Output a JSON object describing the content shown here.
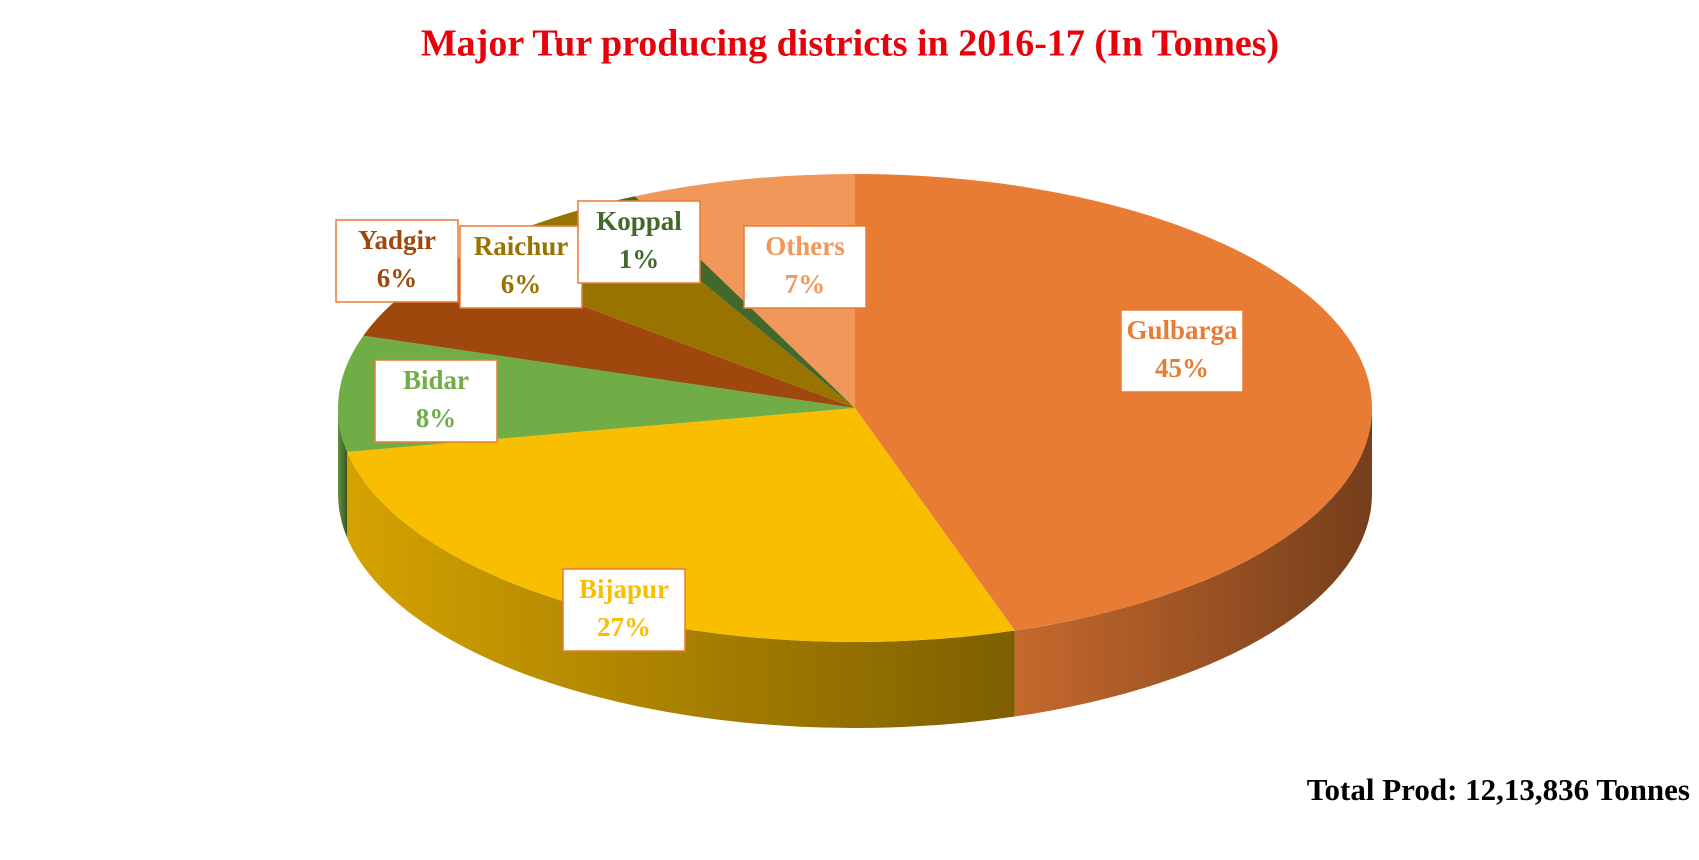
{
  "chart_data": {
    "type": "pie",
    "title": "Major Tur producing districts in 2016-17 (In Tonnes)",
    "annotation": "Total Prod: 12,13,836 Tonnes",
    "categories": [
      "Gulbarga",
      "Bijapur",
      "Bidar",
      "Yadgir",
      "Raichur",
      "Koppal",
      "Others"
    ],
    "values": [
      45,
      27,
      8,
      6,
      6,
      1,
      7
    ],
    "value_labels": [
      "45%",
      "27%",
      "8%",
      "6%",
      "6%",
      "1%",
      "7%"
    ],
    "colors": [
      "#e97c35",
      "#f9be00",
      "#70ad47",
      "#9e480e",
      "#997300",
      "#43682b",
      "#f1975a"
    ]
  }
}
